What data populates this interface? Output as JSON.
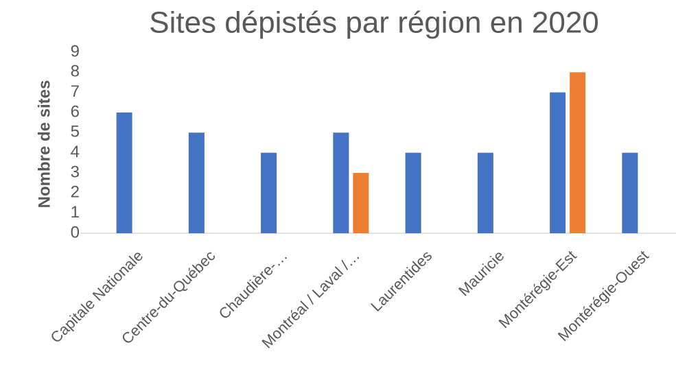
{
  "chart_data": {
    "type": "bar",
    "title": "Sites dépistés par région en 2020",
    "y_label": "Nombre de sites",
    "categories": [
      "Capitale Nationale",
      "Centre-du-Québec",
      "Chaudière-…",
      "Montréal / Laval /…",
      "Laurentides",
      "Mauricie",
      "Montérégie-Est",
      "Montérégie-Ouest"
    ],
    "series": [
      {
        "color": "#4472c4",
        "values": [
          6,
          5,
          4,
          5,
          4,
          4,
          7,
          4
        ]
      },
      {
        "color": "#ed7d31",
        "values": [
          null,
          null,
          null,
          3,
          null,
          null,
          8,
          null
        ]
      }
    ],
    "ylim": [
      0,
      9
    ],
    "yticks": [
      0,
      1,
      2,
      3,
      4,
      5,
      6,
      7,
      8,
      9
    ],
    "grid": false
  }
}
